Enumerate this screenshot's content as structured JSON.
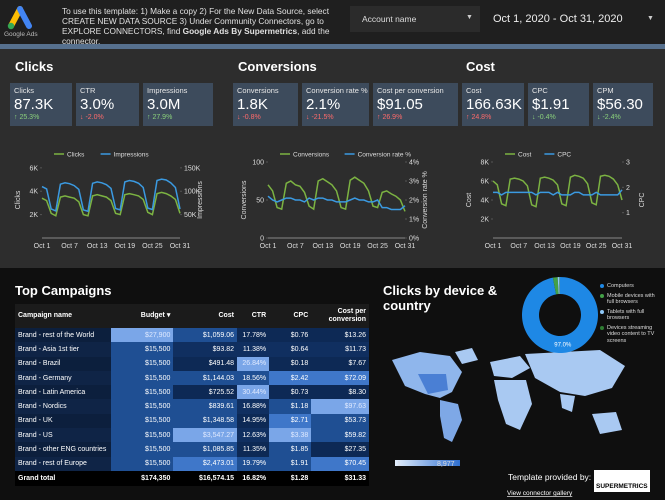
{
  "header": {
    "logo": "Google Ads",
    "instructions": {
      "before": "To use this template:  1) Make a copy  2) For the New Data Source, select CREATE NEW DATA SOURCE  3) Under Community Connectors, go to EXPLORE CONNECTORS, find ",
      "bold": "Google Ads By Supermetrics",
      "after": ", add the connector."
    },
    "account_filter": "Account name",
    "date_range": "Oct 1, 2020 - Oct 31, 2020"
  },
  "sections": [
    {
      "title": "Clicks",
      "scorecards": [
        {
          "label": "Clicks",
          "value": "87.3K",
          "delta": "↑ 25.3%",
          "positive": true
        },
        {
          "label": "CTR",
          "value": "3.0%",
          "delta": "↓ -2.0%",
          "positive": false
        },
        {
          "label": "Impressions",
          "value": "3.0M",
          "delta": "↑ 27.9%",
          "positive": true
        }
      ]
    },
    {
      "title": "Conversions",
      "scorecards": [
        {
          "label": "Conversions",
          "value": "1.8K",
          "delta": "↓ -0.8%",
          "positive": false
        },
        {
          "label": "Conversion rate %",
          "value": "2.1%",
          "delta": "↓ -21.5%",
          "positive": false
        },
        {
          "label": "Cost per conversion",
          "value": "$91.05",
          "delta": "↑ 26.9%",
          "positive": false
        }
      ]
    },
    {
      "title": "Cost",
      "scorecards": [
        {
          "label": "Cost",
          "value": "166.63K",
          "delta": "↑ 24.8%",
          "positive": false
        },
        {
          "label": "CPC",
          "value": "$1.91",
          "delta": "↓ -0.4%",
          "positive": true
        },
        {
          "label": "CPM",
          "value": "$56.30",
          "delta": "↓ -2.4%",
          "positive": true
        }
      ]
    }
  ],
  "charts": [
    {
      "type": "line",
      "categories": [
        "Oct 1",
        null,
        null,
        null,
        null,
        null,
        "Oct 7",
        null,
        null,
        null,
        null,
        null,
        "Oct 13",
        null,
        null,
        null,
        null,
        null,
        "Oct 19",
        null,
        null,
        null,
        null,
        null,
        "Oct 25",
        null,
        null,
        null,
        null,
        null,
        "Oct 31"
      ],
      "ylabel": "Clicks",
      "y2label": "Impressions",
      "ylim": [
        0,
        6500
      ],
      "yticks": [
        {
          "value": 2000,
          "label": "2K"
        },
        {
          "value": 4000,
          "label": "4K"
        },
        {
          "value": 6000,
          "label": "6K"
        }
      ],
      "y2lim": [
        0,
        162500
      ],
      "y2ticks": [
        {
          "value": 50000,
          "label": "50K"
        },
        {
          "value": 100000,
          "label": "100K"
        },
        {
          "value": 150000,
          "label": "150K"
        }
      ],
      "series": [
        {
          "name": "Clicks",
          "color": "#7cb342",
          "values": [
            3400,
            3200,
            2100,
            1900,
            3500,
            3600,
            3500,
            3400,
            3100,
            2000,
            1900,
            3600,
            3700,
            3600,
            3500,
            3200,
            2100,
            2000,
            3700,
            3800,
            3700,
            3600,
            3300,
            2200,
            2000,
            3800,
            3900,
            3800,
            3600,
            3300,
            2100
          ]
        },
        {
          "name": "Impressions",
          "color": "#3b9ae1",
          "axis": "y2",
          "values": [
            110000,
            105000,
            62000,
            58000,
            115000,
            118000,
            116000,
            112000,
            104000,
            60000,
            57000,
            117000,
            120000,
            118000,
            114000,
            106000,
            63000,
            60000,
            120000,
            123000,
            121000,
            117000,
            108000,
            64000,
            61000,
            123000,
            126000,
            124000,
            118000,
            108000,
            62000
          ]
        }
      ]
    },
    {
      "type": "line",
      "categories": [
        "Oct 1",
        null,
        null,
        null,
        null,
        null,
        "Oct 7",
        null,
        null,
        null,
        null,
        null,
        "Oct 13",
        null,
        null,
        null,
        null,
        null,
        "Oct 19",
        null,
        null,
        null,
        null,
        null,
        "Oct 25",
        null,
        null,
        null,
        null,
        null,
        "Oct 31"
      ],
      "ylabel": "Conversions",
      "y2label": "Conversion rate %",
      "ylim": [
        0,
        100
      ],
      "yticks": [
        0,
        50,
        100
      ],
      "y2lim": [
        0,
        4
      ],
      "y2ticks": [
        {
          "value": 0,
          "label": "0%"
        },
        {
          "value": 1,
          "label": "1%"
        },
        {
          "value": 2,
          "label": "2%"
        },
        {
          "value": 3,
          "label": "3%"
        },
        {
          "value": 4,
          "label": "4%"
        }
      ],
      "series": [
        {
          "name": "Conversions",
          "color": "#7cb342",
          "values": [
            70,
            62,
            40,
            38,
            72,
            75,
            70,
            68,
            60,
            42,
            38,
            75,
            78,
            74,
            70,
            62,
            40,
            38,
            76,
            80,
            76,
            72,
            62,
            42,
            40,
            60,
            62,
            58,
            55,
            50,
            35
          ]
        },
        {
          "name": "Conversion rate %",
          "color": "#3b9ae1",
          "axis": "y2",
          "values": [
            2.2,
            2.0,
            1.9,
            2.0,
            2.1,
            2.1,
            2.0,
            2.0,
            1.9,
            2.1,
            2.0,
            2.1,
            2.1,
            2.0,
            2.0,
            1.9,
            1.9,
            1.9,
            2.0,
            2.1,
            2.0,
            2.0,
            1.9,
            1.9,
            2.0,
            1.6,
            1.6,
            1.5,
            1.5,
            1.5,
            1.7
          ]
        }
      ]
    },
    {
      "type": "line",
      "categories": [
        "Oct 1",
        null,
        null,
        null,
        null,
        null,
        "Oct 7",
        null,
        null,
        null,
        null,
        null,
        "Oct 13",
        null,
        null,
        null,
        null,
        null,
        "Oct 19",
        null,
        null,
        null,
        null,
        null,
        "Oct 25",
        null,
        null,
        null,
        null,
        null,
        "Oct 31"
      ],
      "ylabel": "Cost",
      "y2label": "CPC",
      "ylim": [
        0,
        8000
      ],
      "yticks": [
        {
          "value": 2000,
          "label": "2K"
        },
        {
          "value": 4000,
          "label": "4K"
        },
        {
          "value": 6000,
          "label": "6K"
        },
        {
          "value": 8000,
          "label": "8K"
        }
      ],
      "y2lim": [
        0,
        3
      ],
      "y2ticks": [
        1,
        2,
        3
      ],
      "series": [
        {
          "name": "Cost",
          "color": "#7cb342",
          "values": [
            6000,
            5600,
            3600,
            3400,
            6200,
            6300,
            6200,
            6000,
            5500,
            3500,
            3300,
            6300,
            6400,
            6300,
            6100,
            5600,
            3600,
            3400,
            6400,
            6600,
            6500,
            6300,
            5700,
            3700,
            3500,
            6500,
            6600,
            6500,
            6200,
            5600,
            4000
          ]
        },
        {
          "name": "CPC",
          "color": "#3b9ae1",
          "axis": "y2",
          "values": [
            1.8,
            1.8,
            1.7,
            1.8,
            1.8,
            1.8,
            1.8,
            1.8,
            1.8,
            1.8,
            1.7,
            1.8,
            1.8,
            1.8,
            1.7,
            1.8,
            1.7,
            1.7,
            1.7,
            1.8,
            1.8,
            1.7,
            1.7,
            1.7,
            1.8,
            1.7,
            1.7,
            1.7,
            1.7,
            1.7,
            1.9
          ]
        }
      ]
    }
  ],
  "table": {
    "title": "Top Campaigns",
    "columns": [
      "Campaign name",
      "Budget",
      "Cost",
      "CTR",
      "CPC",
      "Cost per conversion"
    ],
    "rows": [
      [
        "Brand - rest of the World",
        "$27,900",
        "$1,059.06",
        "17.78%",
        "$0.76",
        "$13.26"
      ],
      [
        "Brand - Asia 1st tier",
        "$15,500",
        "$93.82",
        "11.38%",
        "$0.64",
        "$11.73"
      ],
      [
        "Brand - Brazil",
        "$15,500",
        "$491.48",
        "26.84%",
        "$0.18",
        "$7.67"
      ],
      [
        "Brand - Germany",
        "$15,500",
        "$1,144.03",
        "18.56%",
        "$2.42",
        "$72.09"
      ],
      [
        "Brand - Latin America",
        "$15,500",
        "$725.52",
        "30.44%",
        "$0.73",
        "$8.30"
      ],
      [
        "Brand - Nordics",
        "$15,500",
        "$839.61",
        "16.88%",
        "$1.18",
        "$97.63"
      ],
      [
        "Brand - UK",
        "$15,500",
        "$1,348.58",
        "14.95%",
        "$2.71",
        "$53.73"
      ],
      [
        "Brand - US",
        "$15,500",
        "$3,547.27",
        "12.63%",
        "$3.38",
        "$59.82"
      ],
      [
        "Brand - other ENG countries",
        "$15,500",
        "$1,085.85",
        "11.35%",
        "$1.85",
        "$27.35"
      ],
      [
        "Brand - rest of Europe",
        "$15,500",
        "$2,473.01",
        "19.79%",
        "$1.91",
        "$70.45"
      ]
    ],
    "total": [
      "Grand total",
      "$174,350",
      "$16,574.15",
      "16.82%",
      "$1.28",
      "$31.33"
    ]
  },
  "device": {
    "title": "Clicks by device & country",
    "slices": [
      {
        "name": "Computers",
        "value": 97.0,
        "color": "#1e88e5",
        "label": "97.0%"
      },
      {
        "name": "Mobile devices with full browsers",
        "value": 2.0,
        "color": "#43a047"
      },
      {
        "name": "Tablets with full browsers",
        "value": 0.8,
        "color": "#90caf9"
      },
      {
        "name": "Devices streaming video content to TV screens",
        "value": 0.2,
        "color": "#2e7d32"
      }
    ],
    "map_scale": {
      "min": "1",
      "max": "8,977"
    }
  },
  "footer": {
    "provided_by": "Template provided by:",
    "logo": "SUPERMETRICS",
    "link": "View connector gallery"
  }
}
